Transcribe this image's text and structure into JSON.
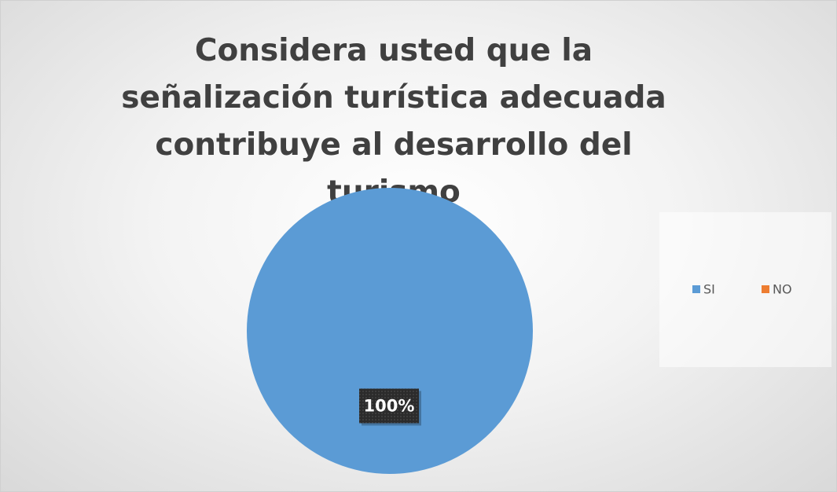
{
  "chart_data": {
    "type": "pie",
    "title": "Considera usted que la señalización turística adecuada contribuye al desarrollo del turismo",
    "categories": [
      "SI",
      "NO"
    ],
    "values": [
      100,
      0
    ],
    "value_labels": [
      "100%",
      null
    ],
    "colors": [
      "#5b9bd5",
      "#ed7d31"
    ],
    "legend": "right"
  }
}
